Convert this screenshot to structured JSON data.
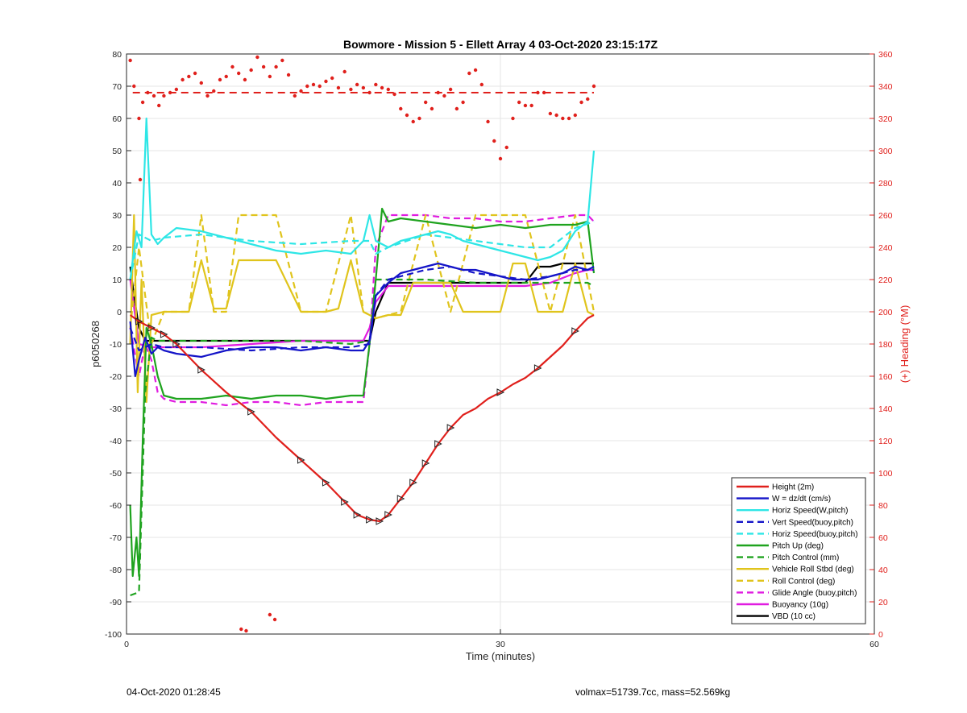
{
  "chart_data": {
    "type": "line",
    "title": "Bowmore - Mission 5 - Ellett Array 4 03-Oct-2020 23:15:17Z",
    "xlabel": "Time (minutes)",
    "ylabel": "p6050268",
    "y2label": "(+) Heading (°M)",
    "xlim": [
      0,
      60
    ],
    "ylim": [
      -100,
      80
    ],
    "y2lim": [
      0,
      360
    ],
    "xticks": [
      "0",
      "30",
      "60"
    ],
    "yticks": [
      "-100",
      "-90",
      "-80",
      "-70",
      "-60",
      "-50",
      "-40",
      "-30",
      "-20",
      "-10",
      "0",
      "10",
      "20",
      "30",
      "40",
      "50",
      "60",
      "70",
      "80"
    ],
    "y2ticks": [
      "0",
      "20",
      "40",
      "60",
      "80",
      "100",
      "120",
      "140",
      "160",
      "180",
      "200",
      "220",
      "240",
      "260",
      "280",
      "300",
      "320",
      "340",
      "360"
    ],
    "grid": true,
    "legend_position": "bottom-right",
    "series": [
      {
        "name": "Height (2m)",
        "color": "#e0201c",
        "style": "solid",
        "x": [
          0.3,
          1,
          2,
          3,
          4,
          6,
          8,
          10,
          12,
          14,
          16,
          17.5,
          18.5,
          19.5,
          20.3,
          21,
          22,
          23,
          24,
          25,
          26,
          27,
          28,
          29,
          30,
          31,
          32,
          33,
          34,
          35,
          36,
          37,
          37.5
        ],
        "y": [
          -1,
          -3,
          -5,
          -7,
          -10,
          -18,
          -25,
          -31,
          -39,
          -46,
          -53,
          -59,
          -63,
          -64.5,
          -65,
          -63,
          -58,
          -53,
          -47,
          -41,
          -36,
          -32,
          -30,
          -27,
          -25,
          -22.5,
          -20.5,
          -17.5,
          -14,
          -10.5,
          -6,
          -2,
          -1
        ]
      },
      {
        "name": "W = dz/dt (cm/s)",
        "color": "#1515c8",
        "style": "solid",
        "x": [
          0.3,
          0.7,
          1,
          1.5,
          2,
          2.5,
          3,
          4,
          6,
          8,
          10,
          12,
          14,
          16,
          18,
          19,
          19.5,
          20,
          21,
          22,
          23,
          24,
          25,
          26,
          27,
          28,
          29,
          30,
          31,
          32,
          33,
          34,
          35,
          36,
          37,
          37.5
        ],
        "y": [
          -3,
          -20,
          -15,
          -8,
          -13,
          -11,
          -12,
          -13,
          -14,
          -12,
          -11,
          -11,
          -12,
          -11,
          -12,
          -12,
          -9,
          5,
          9,
          12,
          13,
          14,
          15,
          14,
          13,
          13,
          12,
          11,
          10,
          10,
          10,
          11,
          12,
          14,
          13,
          14
        ]
      },
      {
        "name": "Horiz Speed(W,pitch)",
        "color": "#2ee6e6",
        "style": "solid",
        "x": [
          0.3,
          0.8,
          1.2,
          1.6,
          2,
          2.5,
          3,
          4,
          6,
          8,
          10,
          12,
          14,
          16,
          18,
          19,
          19.5,
          20,
          21,
          22,
          23,
          24,
          25,
          26,
          27,
          28,
          29,
          30,
          31,
          32,
          33,
          34,
          35,
          36,
          37,
          37.5
        ],
        "y": [
          10,
          25,
          20,
          60,
          24,
          21,
          23,
          26,
          25,
          23,
          21,
          19,
          18,
          19,
          18,
          22,
          30,
          22,
          20,
          22,
          23,
          24,
          25,
          24,
          22,
          21,
          20,
          19,
          18,
          17,
          16,
          17,
          19,
          25,
          28,
          50
        ]
      },
      {
        "name": "Vert Speed(buoy,pitch)",
        "color": "#1515c8",
        "style": "dashed",
        "x": [
          0.3,
          1,
          2,
          3,
          6,
          10,
          14,
          18,
          19.5,
          20,
          21,
          24,
          26,
          28,
          30,
          32,
          34,
          36,
          37.5
        ],
        "y": [
          -5,
          -12,
          -10,
          -11,
          -11,
          -12,
          -11,
          -11,
          -10,
          5,
          10,
          13,
          14,
          12,
          11,
          10,
          11,
          13,
          13
        ]
      },
      {
        "name": "Horiz Speed(buoy,pitch)",
        "color": "#2ee6e6",
        "style": "dashed",
        "x": [
          0.3,
          1,
          2,
          3,
          6,
          10,
          14,
          18,
          19.5,
          20,
          21,
          24,
          26,
          28,
          30,
          32,
          34,
          36,
          37.5
        ],
        "y": [
          10,
          24,
          22,
          23,
          24,
          22,
          21,
          22,
          22,
          18,
          20,
          24,
          23,
          22,
          21,
          20,
          20,
          26,
          28
        ]
      },
      {
        "name": "Pitch Up (deg)",
        "color": "#1fa31f",
        "style": "solid",
        "x": [
          0.3,
          0.5,
          0.8,
          1,
          1.3,
          1.6,
          2,
          2.5,
          3,
          4,
          6,
          8,
          10,
          12,
          14,
          16,
          18,
          19,
          19.5,
          20,
          20.5,
          21,
          22,
          24,
          26,
          28,
          30,
          32,
          34,
          36,
          37,
          37.5
        ],
        "y": [
          -60,
          -82,
          -70,
          -82,
          -40,
          -5,
          -10,
          -20,
          -26,
          -27,
          -27,
          -26,
          -27,
          -26,
          -26,
          -27,
          -26,
          -26,
          -10,
          10,
          32,
          28,
          29,
          28,
          27,
          26,
          27,
          26,
          27,
          27,
          28,
          12
        ]
      },
      {
        "name": "Pitch Control (mm)",
        "color": "#1fa31f",
        "style": "dashed",
        "x": [
          0.3,
          1,
          1.5,
          2,
          2.5,
          3,
          6,
          10,
          14,
          18,
          19.5,
          20,
          21,
          24,
          28,
          32,
          36,
          37,
          37.5
        ],
        "y": [
          -88,
          -87,
          -25,
          -8,
          -9,
          -9,
          -9,
          -9,
          -9,
          -10,
          -9,
          10,
          10,
          10,
          9,
          9,
          9,
          9,
          8
        ]
      },
      {
        "name": "Vehicle Roll Stbd (deg)",
        "color": "#e0c41c",
        "style": "solid",
        "x": [
          0.3,
          0.6,
          0.9,
          1.2,
          1.6,
          2,
          3,
          4,
          5,
          6,
          7,
          8,
          9,
          10,
          12,
          14,
          16,
          17,
          18,
          19,
          20,
          21,
          22,
          23,
          24,
          25,
          26,
          27,
          28,
          29,
          30,
          31,
          32,
          33,
          34,
          35,
          36,
          37,
          37.5
        ],
        "y": [
          -10,
          30,
          -25,
          10,
          -28,
          -1,
          0,
          0,
          0,
          16,
          1,
          1,
          16,
          16,
          16,
          0,
          0,
          1,
          16,
          0,
          -2,
          -1,
          -1,
          9,
          9,
          9,
          9,
          0,
          0,
          0,
          0,
          15,
          15,
          0,
          0,
          0,
          15,
          0,
          -1
        ]
      },
      {
        "name": "Roll Control (deg)",
        "color": "#e0c41c",
        "style": "dashed",
        "x": [
          0.3,
          1,
          2,
          3,
          5,
          6,
          7,
          8,
          9,
          10,
          12,
          14,
          16,
          18,
          19,
          20,
          21,
          22,
          24,
          26,
          28,
          30,
          32,
          34,
          36,
          37.5
        ],
        "y": [
          -5,
          20,
          -10,
          0,
          0,
          30,
          0,
          0,
          30,
          30,
          30,
          0,
          0,
          30,
          0,
          -2,
          -1,
          0,
          30,
          0,
          30,
          30,
          30,
          0,
          30,
          0
        ]
      },
      {
        "name": "Glide Angle (buoy,pitch)",
        "color": "#e01ce0",
        "style": "dashed",
        "x": [
          0.3,
          1,
          1.5,
          2,
          2.5,
          3,
          4,
          6,
          8,
          10,
          12,
          14,
          16,
          18,
          19,
          19.5,
          20,
          21,
          22,
          24,
          26,
          28,
          30,
          32,
          34,
          36,
          37,
          37.5
        ],
        "y": [
          -5,
          -20,
          -10,
          -15,
          -25,
          -27,
          -28,
          -28,
          -29,
          -28,
          -28,
          -29,
          -28,
          -28,
          -28,
          -10,
          20,
          30,
          30,
          30,
          29,
          29,
          28,
          28,
          29,
          30,
          30,
          28
        ]
      },
      {
        "name": "Buoyancy (10g)",
        "color": "#e01ce0",
        "style": "solid",
        "x": [
          0.3,
          1,
          2,
          3,
          6,
          10,
          14,
          18,
          19,
          19.5,
          20,
          21,
          24,
          28,
          32,
          34,
          36,
          37,
          37.5
        ],
        "y": [
          10,
          -10,
          -11,
          -11,
          -11,
          -10,
          -9,
          -9,
          -9,
          -5,
          3,
          8,
          8,
          8,
          8,
          9,
          12,
          13,
          13
        ]
      },
      {
        "name": "VBD (10 cc)",
        "color": "#000000",
        "style": "solid",
        "x": [
          0.3,
          0.6,
          1,
          1.5,
          2,
          3,
          6,
          10,
          14,
          18,
          19,
          19.5,
          20,
          21,
          22,
          24,
          28,
          32,
          33,
          34,
          35,
          36,
          37,
          37.5
        ],
        "y": [
          14,
          5,
          -5,
          -9,
          -9,
          -9,
          -9,
          -9,
          -9,
          -9,
          -9,
          -9,
          0,
          9,
          9,
          9,
          9,
          9,
          14,
          14,
          15,
          15,
          15,
          15
        ]
      }
    ],
    "heading_points": {
      "name": "Heading",
      "color": "#e0201c",
      "axis": "y2",
      "x": [
        0.3,
        0.6,
        1,
        1.3,
        1.7,
        2.2,
        2.6,
        3,
        3.5,
        4,
        4.5,
        5,
        5.5,
        6,
        6.5,
        7,
        7.5,
        8,
        8.5,
        9,
        9.5,
        10,
        10.5,
        11,
        11.5,
        12,
        12.5,
        13,
        13.5,
        14,
        14.5,
        15,
        15.5,
        16,
        16.5,
        17,
        17.5,
        18,
        18.5,
        19,
        19.5,
        20,
        20.5,
        21,
        21.5,
        22,
        22.5,
        23,
        23.5,
        24,
        24.5,
        25,
        25.5,
        26,
        26.5,
        27,
        27.5,
        28,
        28.5,
        29,
        29.5,
        30,
        30.5,
        31,
        31.5,
        32,
        32.5,
        33,
        33.5,
        34,
        34.5,
        35,
        35.5,
        36,
        36.5,
        37,
        37.5,
        1.1,
        9.2,
        9.6,
        11.5,
        11.9
      ],
      "y": [
        356,
        340,
        320,
        330,
        336,
        334,
        328,
        334,
        336,
        338,
        344,
        346,
        348,
        342,
        334,
        337,
        344,
        346,
        352,
        348,
        344,
        350,
        358,
        352,
        346,
        352,
        356,
        347,
        334,
        337,
        340,
        341,
        340,
        343,
        345,
        339,
        349,
        338,
        341,
        339,
        336,
        341,
        339,
        338,
        335,
        326,
        322,
        318,
        320,
        330,
        326,
        336,
        334,
        338,
        326,
        330,
        348,
        350,
        341,
        318,
        306,
        295,
        302,
        320,
        330,
        328,
        328,
        336,
        336,
        323,
        322,
        320,
        320,
        322,
        330,
        332,
        340,
        282,
        3,
        2,
        12,
        9
      ]
    },
    "heading_reference": {
      "value": 336,
      "color": "#e0201c",
      "style": "dashed",
      "x": [
        0.5,
        37.5
      ]
    }
  },
  "footer": {
    "left": "04-Oct-2020 01:28:45",
    "right": "volmax=51739.7cc, mass=52.569kg"
  }
}
